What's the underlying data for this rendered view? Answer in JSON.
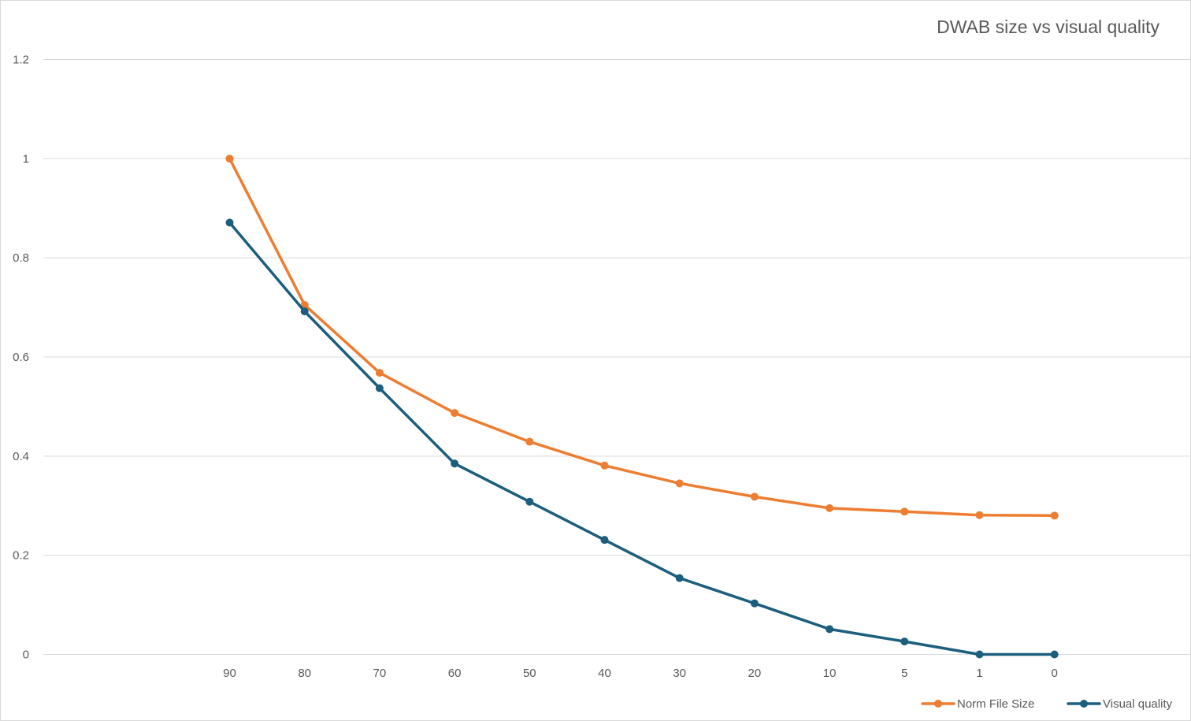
{
  "chart_data": {
    "type": "line",
    "title": "DWAB size vs visual quality",
    "xlabel": "",
    "ylabel": "",
    "categories": [
      "90",
      "80",
      "70",
      "60",
      "50",
      "40",
      "30",
      "20",
      "10",
      "5",
      "1",
      "0"
    ],
    "series": [
      {
        "name": "Norm File Size",
        "color": "#ED7D31",
        "values": [
          1.0,
          0.705,
          0.568,
          0.487,
          0.429,
          0.381,
          0.345,
          0.318,
          0.295,
          0.288,
          0.281,
          0.28
        ]
      },
      {
        "name": "Visual quality",
        "color": "#1B5E7E",
        "values": [
          0.871,
          0.692,
          0.537,
          0.385,
          0.308,
          0.231,
          0.154,
          0.103,
          0.051,
          0.026,
          0.0,
          0.0
        ]
      }
    ],
    "ylim": [
      0,
      1.2
    ],
    "yticks": [
      "0",
      "0.2",
      "0.4",
      "0.6",
      "0.8",
      "1",
      "1.2"
    ],
    "grid": true,
    "legend_position": "bottom-right"
  }
}
